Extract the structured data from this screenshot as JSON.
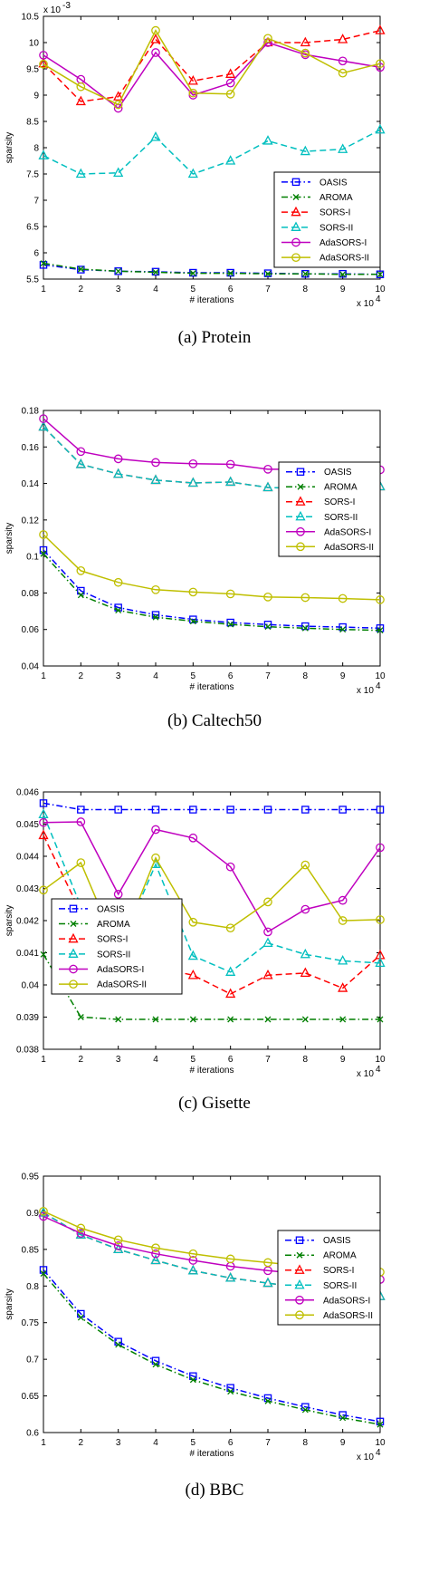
{
  "figure": {
    "styles": {
      "OASIS": {
        "color": "#0000ff",
        "dash": "7,3,1.5,3",
        "marker": "square"
      },
      "AROMA": {
        "color": "#007f00",
        "dash": "7,3,1.5,3",
        "marker": "x"
      },
      "SORS-I": {
        "color": "#ff0000",
        "dash": "7,4",
        "marker": "triangle"
      },
      "SORS-II": {
        "color": "#00bfbf",
        "dash": "7,4",
        "marker": "triangle"
      },
      "AdaSORS-I": {
        "color": "#bf00bf",
        "dash": "",
        "marker": "circle"
      },
      "AdaSORS-II": {
        "color": "#bfbf00",
        "dash": "",
        "marker": "circle"
      }
    }
  },
  "chart_data": [
    {
      "type": "line",
      "caption": "(a) Protein",
      "xlabel": "# iterations",
      "ylabel": "sparsity",
      "x_multiplier": "x 10",
      "x_multiplier_exp": "4",
      "y_multiplier": "x 10",
      "y_multiplier_exp": "-3",
      "x": [
        1,
        2,
        3,
        4,
        5,
        6,
        7,
        8,
        9,
        10
      ],
      "xlim": [
        1,
        10
      ],
      "ylim": [
        5.5,
        10.5
      ],
      "yticks": [
        5.5,
        6,
        6.5,
        7,
        7.5,
        8,
        8.5,
        9,
        9.5,
        10,
        10.5
      ],
      "ytick_labels": [
        "5.5",
        "6",
        "6.5",
        "7",
        "7.5",
        "8",
        "8.5",
        "9",
        "9.5",
        "10",
        "10.5"
      ],
      "legend_position": "right",
      "series": [
        {
          "name": "OASIS",
          "values": [
            5.77,
            5.68,
            5.65,
            5.64,
            5.62,
            5.62,
            5.61,
            5.6,
            5.6,
            5.59
          ]
        },
        {
          "name": "AROMA",
          "values": [
            5.8,
            5.69,
            5.65,
            5.63,
            5.61,
            5.61,
            5.6,
            5.6,
            5.59,
            5.59
          ]
        },
        {
          "name": "SORS-I",
          "values": [
            9.6,
            8.88,
            8.97,
            10.06,
            9.27,
            9.4,
            10.0,
            10.0,
            10.06,
            10.23
          ]
        },
        {
          "name": "SORS-II",
          "values": [
            7.85,
            7.5,
            7.52,
            8.2,
            7.5,
            7.75,
            8.13,
            7.93,
            7.97,
            8.34
          ]
        },
        {
          "name": "AdaSORS-I",
          "values": [
            9.76,
            9.3,
            8.75,
            9.81,
            9.0,
            9.23,
            10.0,
            9.77,
            9.65,
            9.53
          ]
        },
        {
          "name": "AdaSORS-II",
          "values": [
            9.59,
            9.16,
            8.82,
            10.23,
            9.04,
            9.02,
            10.08,
            9.8,
            9.42,
            9.6
          ]
        }
      ]
    },
    {
      "type": "line",
      "caption": "(b) Caltech50",
      "xlabel": "# iterations",
      "ylabel": "sparsity",
      "x_multiplier": "x 10",
      "x_multiplier_exp": "4",
      "x": [
        1,
        2,
        3,
        4,
        5,
        6,
        7,
        8,
        9,
        10
      ],
      "xlim": [
        1,
        10
      ],
      "ylim": [
        0.04,
        0.18
      ],
      "yticks": [
        0.04,
        0.06,
        0.08,
        0.1,
        0.12,
        0.14,
        0.16,
        0.18
      ],
      "ytick_labels": [
        "0.04",
        "0.06",
        "0.08",
        "0.1",
        "0.12",
        "0.14",
        "0.16",
        "0.18"
      ],
      "legend_position": "right",
      "series": [
        {
          "name": "OASIS",
          "values": [
            0.1035,
            0.0812,
            0.072,
            0.068,
            0.0655,
            0.0638,
            0.0627,
            0.0618,
            0.0613,
            0.0607
          ]
        },
        {
          "name": "AROMA",
          "values": [
            0.1015,
            0.0788,
            0.0705,
            0.0667,
            0.0645,
            0.0628,
            0.0615,
            0.0607,
            0.06,
            0.0595
          ]
        },
        {
          "name": "SORS-I",
          "values": [
            0.171,
            0.1505,
            0.1452,
            0.1418,
            0.1403,
            0.1408,
            0.1378,
            0.1372,
            0.139,
            0.1383
          ]
        },
        {
          "name": "SORS-II",
          "values": [
            0.171,
            0.1505,
            0.1452,
            0.1418,
            0.1403,
            0.1408,
            0.1378,
            0.1372,
            0.139,
            0.1383
          ]
        },
        {
          "name": "AdaSORS-I",
          "values": [
            0.1755,
            0.1575,
            0.1535,
            0.1515,
            0.1508,
            0.1505,
            0.1478,
            0.1478,
            0.1485,
            0.1475
          ]
        },
        {
          "name": "AdaSORS-II",
          "values": [
            0.112,
            0.0922,
            0.0858,
            0.0818,
            0.0805,
            0.0795,
            0.0778,
            0.0775,
            0.077,
            0.0763
          ]
        }
      ]
    },
    {
      "type": "line",
      "caption": "(c) Gisette",
      "xlabel": "# iterations",
      "ylabel": "sparsity",
      "x_multiplier": "x 10",
      "x_multiplier_exp": "4",
      "x": [
        1,
        2,
        3,
        4,
        5,
        6,
        7,
        8,
        9,
        10
      ],
      "xlim": [
        1,
        10
      ],
      "ylim": [
        0.038,
        0.046
      ],
      "yticks": [
        0.038,
        0.039,
        0.04,
        0.041,
        0.042,
        0.043,
        0.044,
        0.045,
        0.046
      ],
      "ytick_labels": [
        "0.038",
        "0.039",
        "0.04",
        "0.041",
        "0.042",
        "0.043",
        "0.044",
        "0.045",
        "0.046"
      ],
      "legend_position": "left",
      "series": [
        {
          "name": "OASIS",
          "values": [
            0.04565,
            0.04545,
            0.04545,
            0.04545,
            0.04545,
            0.04545,
            0.04545,
            0.04545,
            0.04545,
            0.04545
          ]
        },
        {
          "name": "AROMA",
          "values": [
            0.04095,
            0.039,
            0.03893,
            0.03893,
            0.03893,
            0.03893,
            0.03893,
            0.03893,
            0.03893,
            0.03893
          ]
        },
        {
          "name": "SORS-I",
          "values": [
            0.04465,
            0.04225,
            0.0416,
            0.04055,
            0.0403,
            0.03972,
            0.0403,
            0.04037,
            0.0399,
            0.04092
          ]
        },
        {
          "name": "SORS-II",
          "values": [
            0.0453,
            0.04245,
            0.04105,
            0.04375,
            0.0409,
            0.0404,
            0.0413,
            0.04095,
            0.04075,
            0.04068
          ]
        },
        {
          "name": "AdaSORS-I",
          "values": [
            0.04505,
            0.04507,
            0.04282,
            0.04483,
            0.04457,
            0.04367,
            0.04165,
            0.04235,
            0.04263,
            0.04427
          ]
        },
        {
          "name": "AdaSORS-II",
          "values": [
            0.04295,
            0.0438,
            0.04105,
            0.04395,
            0.04195,
            0.04177,
            0.04258,
            0.04373,
            0.042,
            0.04203
          ]
        }
      ]
    },
    {
      "type": "line",
      "caption": "(d) BBC",
      "xlabel": "# iterations",
      "ylabel": "sparsity",
      "x_multiplier": "x 10",
      "x_multiplier_exp": "4",
      "x": [
        1,
        2,
        3,
        4,
        5,
        6,
        7,
        8,
        9,
        10
      ],
      "xlim": [
        1,
        10
      ],
      "ylim": [
        0.6,
        0.95
      ],
      "yticks": [
        0.6,
        0.65,
        0.7,
        0.75,
        0.8,
        0.85,
        0.9,
        0.95
      ],
      "ytick_labels": [
        "0.6",
        "0.65",
        "0.7",
        "0.75",
        "0.8",
        "0.85",
        "0.9",
        "0.95"
      ],
      "legend_position": "right",
      "series": [
        {
          "name": "OASIS",
          "values": [
            0.822,
            0.762,
            0.724,
            0.698,
            0.677,
            0.661,
            0.647,
            0.635,
            0.624,
            0.615
          ]
        },
        {
          "name": "AROMA",
          "values": [
            0.817,
            0.757,
            0.72,
            0.693,
            0.672,
            0.656,
            0.643,
            0.631,
            0.62,
            0.611
          ]
        },
        {
          "name": "SORS-I",
          "values": [
            0.9,
            0.87,
            0.85,
            0.835,
            0.821,
            0.811,
            0.804,
            0.797,
            0.79,
            0.786
          ]
        },
        {
          "name": "SORS-II",
          "values": [
            0.9,
            0.87,
            0.85,
            0.835,
            0.821,
            0.811,
            0.804,
            0.797,
            0.79,
            0.786
          ]
        },
        {
          "name": "AdaSORS-I",
          "values": [
            0.895,
            0.872,
            0.855,
            0.844,
            0.835,
            0.827,
            0.821,
            0.816,
            0.812,
            0.809
          ]
        },
        {
          "name": "AdaSORS-II",
          "values": [
            0.902,
            0.879,
            0.863,
            0.852,
            0.844,
            0.837,
            0.832,
            0.827,
            0.823,
            0.819
          ]
        }
      ]
    }
  ]
}
